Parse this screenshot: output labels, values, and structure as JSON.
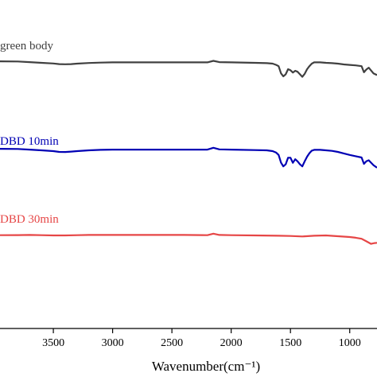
{
  "chart_data": {
    "type": "line",
    "xlabel": "Wavenumber(cm⁻¹)",
    "ylabel": "",
    "xlim": [
      3950,
      770
    ],
    "x_reversed": true,
    "x_ticks": [
      3500,
      3000,
      2500,
      2000,
      1500,
      1000
    ],
    "grid": false,
    "series": [
      {
        "name": "green body",
        "color": "#404040",
        "x": [
          3950,
          3800,
          3700,
          3600,
          3500,
          3450,
          3400,
          3350,
          3300,
          3200,
          3100,
          3000,
          2800,
          2600,
          2400,
          2200,
          2150,
          2100,
          2000,
          1800,
          1700,
          1650,
          1620,
          1600,
          1580,
          1560,
          1540,
          1520,
          1500,
          1480,
          1460,
          1440,
          1420,
          1400,
          1380,
          1360,
          1340,
          1320,
          1300,
          1250,
          1200,
          1150,
          1100,
          1050,
          1000,
          950,
          900,
          880,
          860,
          840,
          800,
          770
        ],
        "y": [
          0.9,
          0.85,
          0.6,
          0.3,
          0.05,
          -0.2,
          -0.25,
          -0.2,
          0.0,
          0.25,
          0.4,
          0.5,
          0.5,
          0.5,
          0.5,
          0.5,
          1.1,
          0.6,
          0.5,
          0.3,
          0.2,
          0.0,
          -0.5,
          -1.0,
          -3.8,
          -5.0,
          -4.2,
          -2.2,
          -2.6,
          -3.5,
          -2.8,
          -3.2,
          -4.2,
          -5.2,
          -4.0,
          -2.2,
          -1.0,
          0.0,
          0.5,
          0.5,
          0.3,
          0.2,
          0.0,
          -0.3,
          -0.5,
          -0.7,
          -1.0,
          -3.4,
          -2.3,
          -1.6,
          -3.8,
          -4.5
        ]
      },
      {
        "name": "DBD 10min",
        "color": "#0000b4",
        "x": [
          3950,
          3800,
          3700,
          3600,
          3500,
          3450,
          3400,
          3350,
          3300,
          3200,
          3100,
          3000,
          2800,
          2600,
          2400,
          2200,
          2150,
          2100,
          2000,
          1800,
          1700,
          1650,
          1620,
          1600,
          1580,
          1560,
          1540,
          1520,
          1500,
          1480,
          1460,
          1440,
          1420,
          1400,
          1380,
          1360,
          1340,
          1320,
          1300,
          1250,
          1200,
          1150,
          1100,
          1050,
          1000,
          950,
          900,
          880,
          860,
          840,
          800,
          770
        ],
        "y": [
          0.9,
          0.85,
          0.6,
          0.3,
          0.0,
          -0.3,
          -0.35,
          -0.2,
          0.0,
          0.3,
          0.5,
          0.6,
          0.6,
          0.6,
          0.6,
          0.6,
          1.3,
          0.7,
          0.6,
          0.4,
          0.3,
          0.0,
          -0.6,
          -1.5,
          -4.5,
          -6.0,
          -5.2,
          -2.6,
          -2.6,
          -4.6,
          -3.2,
          -4.0,
          -5.2,
          -6.0,
          -4.0,
          -2.2,
          -0.8,
          0.2,
          0.5,
          0.5,
          0.3,
          0.1,
          -0.3,
          -0.9,
          -1.5,
          -2.0,
          -2.5,
          -5.0,
          -4.0,
          -3.6,
          -5.5,
          -6.5
        ]
      },
      {
        "name": "DBD 30min",
        "color": "#e64646",
        "x": [
          3950,
          3800,
          3700,
          3600,
          3500,
          3400,
          3300,
          3200,
          3000,
          2800,
          2600,
          2400,
          2200,
          2150,
          2100,
          2000,
          1800,
          1600,
          1500,
          1400,
          1300,
          1200,
          1100,
          1000,
          950,
          900,
          860,
          820,
          790,
          770
        ],
        "y": [
          0.4,
          0.45,
          0.5,
          0.4,
          0.3,
          0.3,
          0.4,
          0.5,
          0.5,
          0.5,
          0.5,
          0.5,
          0.4,
          1.0,
          0.5,
          0.4,
          0.3,
          0.2,
          0.1,
          -0.1,
          0.2,
          0.3,
          0.0,
          -0.3,
          -0.6,
          -1.0,
          -2.0,
          -3.0,
          -2.7,
          -2.6
        ]
      }
    ]
  }
}
